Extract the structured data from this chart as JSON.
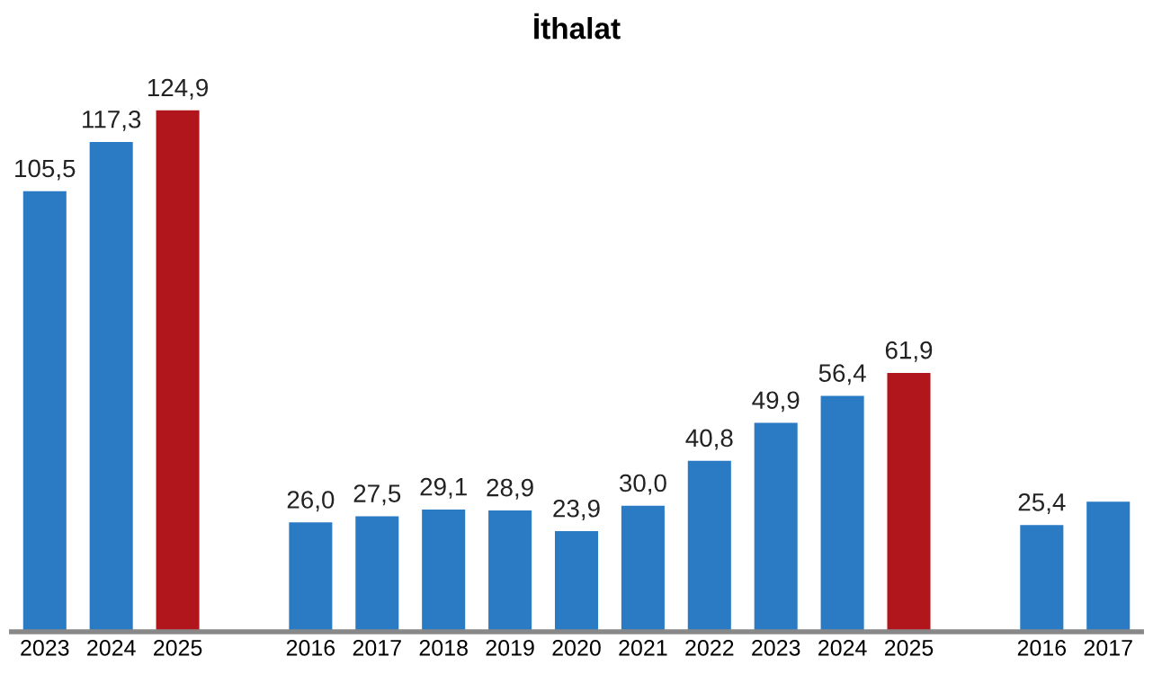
{
  "chart_data": {
    "type": "bar",
    "title": "İthalat",
    "categories": [
      "2023",
      "2024",
      "2025",
      null,
      "2016",
      "2017",
      "2018",
      "2019",
      "2020",
      "2021",
      "2022",
      "2023",
      "2024",
      "2025",
      null,
      "2016",
      "2017"
    ],
    "values": [
      105.5,
      117.3,
      124.9,
      null,
      26.0,
      27.5,
      29.1,
      28.9,
      23.9,
      30.0,
      40.8,
      49.9,
      56.4,
      61.9,
      null,
      25.4,
      31.0
    ],
    "value_labels": [
      "105,5",
      "117,3",
      "124,9",
      null,
      "26,0",
      "27,5",
      "29,1",
      "28,9",
      "23,9",
      "30,0",
      "40,8",
      "49,9",
      "56,4",
      "61,9",
      null,
      "25,4",
      null
    ],
    "colors": [
      "#2a7bc4",
      "#2a7bc4",
      "#b0161b",
      null,
      "#2a7bc4",
      "#2a7bc4",
      "#2a7bc4",
      "#2a7bc4",
      "#2a7bc4",
      "#2a7bc4",
      "#2a7bc4",
      "#2a7bc4",
      "#2a7bc4",
      "#b0161b",
      null,
      "#2a7bc4",
      "#2a7bc4"
    ],
    "grid": false,
    "tick_labels": "x"
  }
}
